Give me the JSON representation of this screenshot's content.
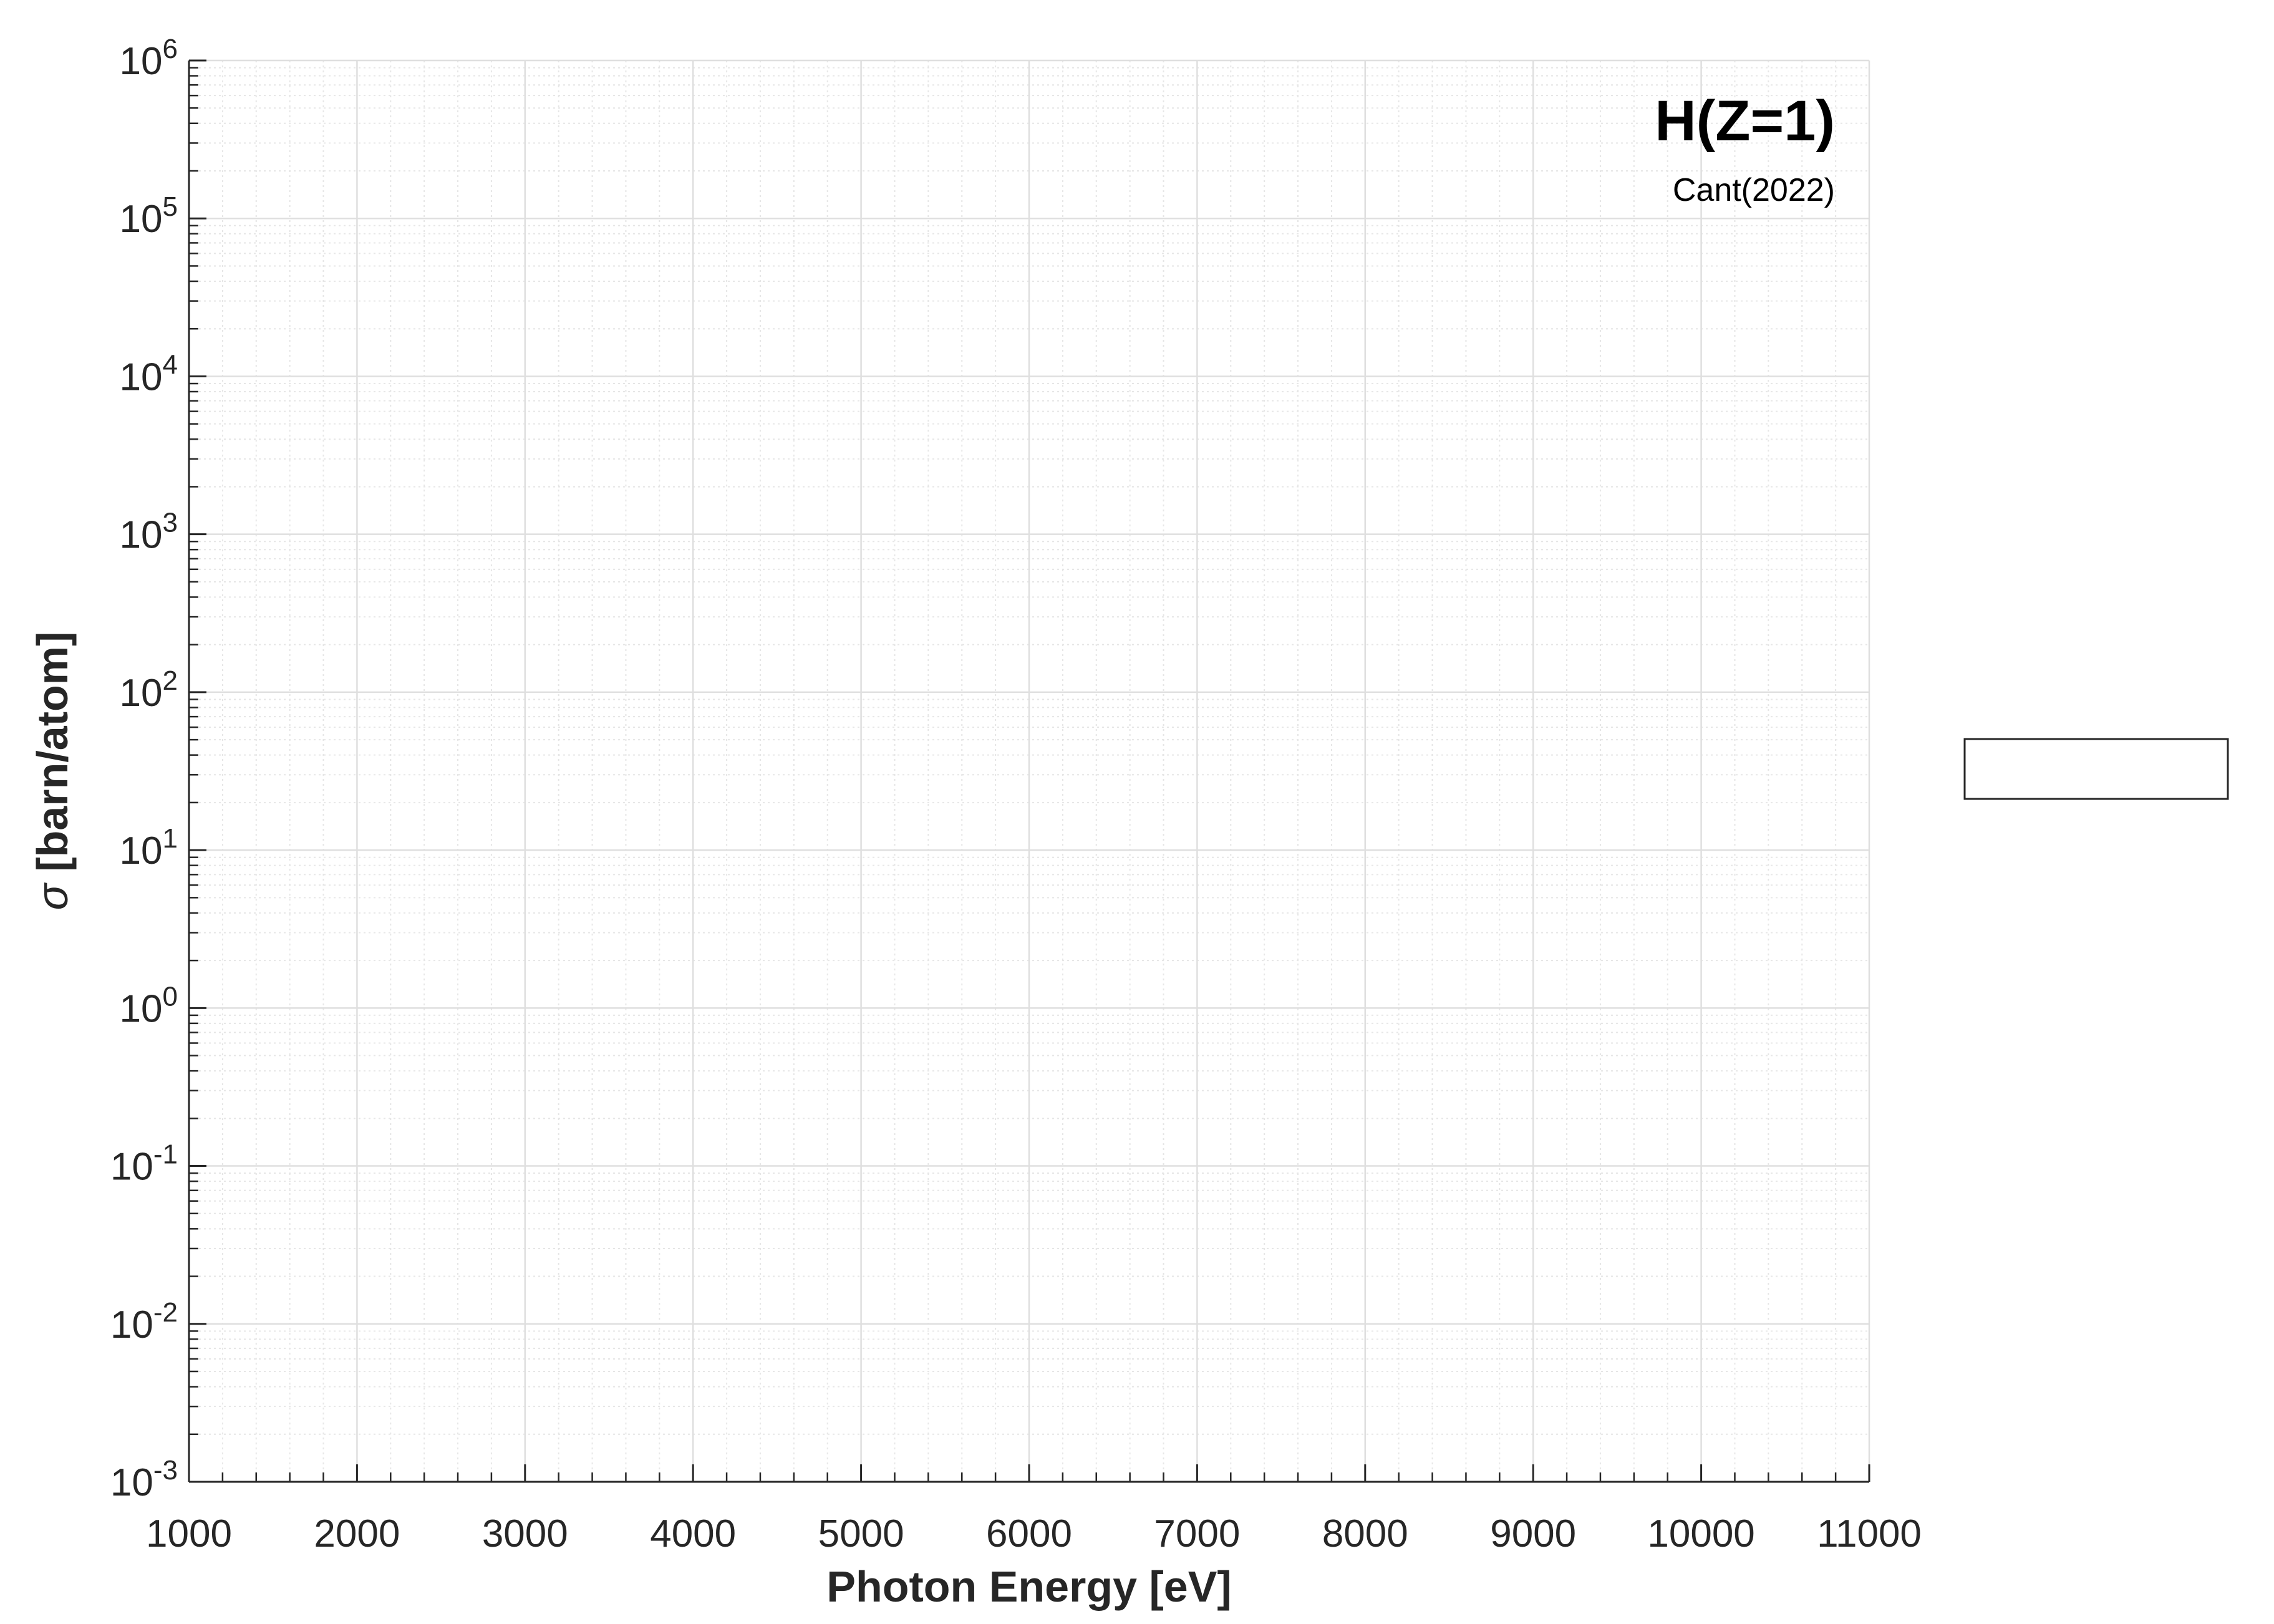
{
  "chart_data": {
    "type": "line",
    "title": "",
    "xlabel": "Photon Energy [eV]",
    "ylabel_symbol": "σ",
    "ylabel": "[barn/atom]",
    "xlim": [
      1000,
      11000
    ],
    "ylim": [
      0.001,
      1000000
    ],
    "xscale": "linear",
    "yscale": "log",
    "xticks": [
      1000,
      2000,
      3000,
      4000,
      5000,
      6000,
      7000,
      8000,
      9000,
      10000,
      11000
    ],
    "xtick_labels": [
      "1000",
      "2000",
      "3000",
      "4000",
      "5000",
      "6000",
      "7000",
      "8000",
      "9000",
      "10000",
      "11000"
    ],
    "yticks": [
      {
        "base": "10",
        "exp": "-3"
      },
      {
        "base": "10",
        "exp": "-2"
      },
      {
        "base": "10",
        "exp": "-1"
      },
      {
        "base": "10",
        "exp": "0"
      },
      {
        "base": "10",
        "exp": "1"
      },
      {
        "base": "10",
        "exp": "2"
      },
      {
        "base": "10",
        "exp": "3"
      },
      {
        "base": "10",
        "exp": "4"
      },
      {
        "base": "10",
        "exp": "5"
      },
      {
        "base": "10",
        "exp": "6"
      }
    ],
    "grid": true,
    "minor_grid": true,
    "annotations": {
      "element": "H(Z=1)",
      "source": "Cant(2022)"
    },
    "legend": {
      "placement": "outside-right",
      "entries": []
    },
    "series": [],
    "colors": {
      "axis": "#262626",
      "major_grid": "#dfdfdf",
      "minor_grid": "#e6e6e6",
      "background": "#ffffff"
    }
  }
}
